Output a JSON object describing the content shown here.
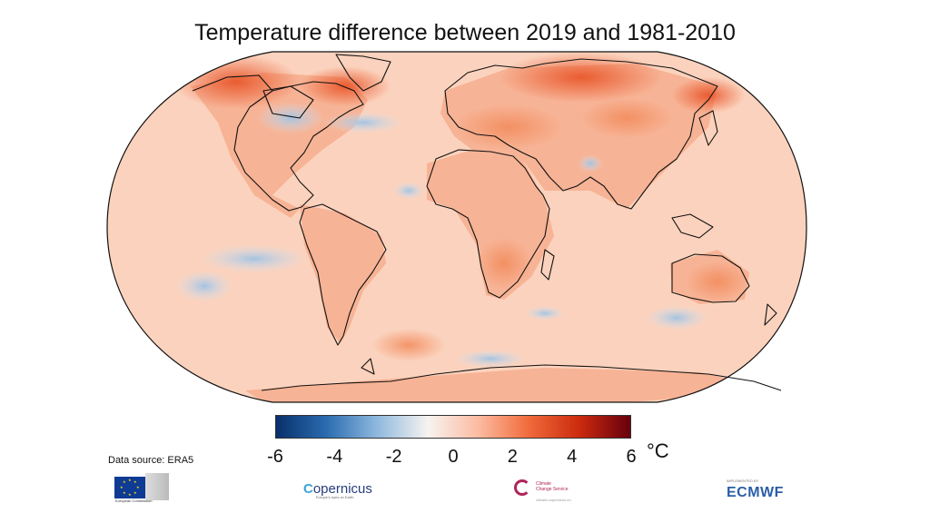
{
  "title": "Temperature difference between 2019 and 1981-2010",
  "legend": {
    "ticks": [
      "-6",
      "-4",
      "-2",
      "0",
      "2",
      "4",
      "6"
    ],
    "range": [
      -6,
      6
    ],
    "unit": "°C",
    "colors": [
      "#08306b",
      "#2b6cb0",
      "#8fb9de",
      "#f7f3f0",
      "#fcbba1",
      "#f06a3a",
      "#cb2a0e",
      "#67000d"
    ]
  },
  "source": "Data source: ERA5",
  "logos": {
    "eu": "European Commission",
    "copernicus": "opernicus",
    "copernicus_c": "C",
    "copernicus_sub": "Europe's eyes on Earth",
    "c3s_line1": "Climate",
    "c3s_line2": "Change Service",
    "c3s_url": "climate.copernicus.eu",
    "ecmwf": "ECMWF",
    "ecmwf_pre": "IMPLEMENTED BY"
  },
  "map": {
    "projection": "Robinson",
    "ocean_color": "#fbd8c6",
    "land_color": "#f8b496",
    "warm_color": "#ee6530",
    "cool_color": "#c9dcef"
  }
}
